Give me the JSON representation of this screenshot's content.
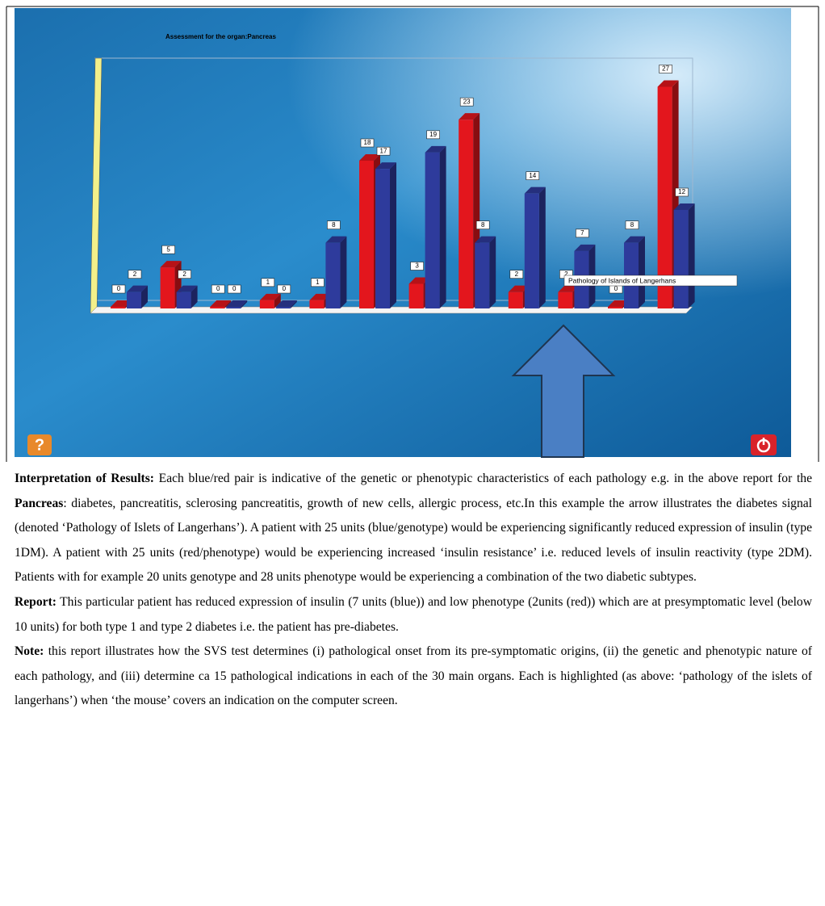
{
  "chart_data": {
    "type": "bar3d",
    "title": "Assessment for the organ:Pancreas",
    "categories": [
      null,
      null,
      null,
      null,
      null,
      null,
      null,
      null,
      null,
      null,
      null,
      null
    ],
    "series": [
      {
        "color": "#e3161d",
        "values": [
          0,
          5,
          0,
          1,
          1,
          18,
          3,
          23,
          2,
          2,
          0,
          27
        ]
      },
      {
        "color": "#2e3b9c",
        "values": [
          2,
          2,
          0,
          0,
          8,
          17,
          19,
          8,
          14,
          7,
          8,
          12
        ]
      }
    ],
    "ylim": [
      0,
      30
    ],
    "tooltip": "Pathology of Islands of Langerhans"
  },
  "document": {
    "paragraphs": [
      {
        "label": "Interpretation of Results:",
        "text": "Each blue/red pair is indicative of the genetic or phenotypic characteristics of each pathology e.g. in the above report for the",
        "bold": "Pancreas",
        "text_after": ": diabetes, pancreatitis, sclerosing pancreatitis, growth of new cells, allergic process, etc.In this example the arrow illustrates the diabetes signal (denoted ‘Pathology of Islets of Langerhans’). A patient with 25 units (blue/genotype) would be experiencing significantly reduced expression of insulin (type 1DM). A patient with 25 units (red/phenotype) would be experiencing increased ‘insulin resistance’ i.e. reduced levels of insulin reactivity (type 2DM). Patients with for example 20 units genotype and 28 units phenotype would be experiencing a combination of the two diabetic subtypes."
      },
      {
        "label": "Report:",
        "text": "This particular patient has reduced expression of insulin (7 units (blue)) and low phenotype (2units (red)) which are at presymptomatic level (below 10 units) for both type 1 and type 2 diabetes i.e. the patient has pre-diabetes."
      },
      {
        "label": "Note:",
        "text": "this report illustrates how the SVS test determines (i) pathological onset from its pre-symptomatic origins, (ii) the genetic and phenotypic nature of each pathology, and (iii) determine ca 15 pathological indications in each of the 30 main organs.  Each is highlighted (as above: ‘pathology of the islets of langerhans’) when ‘the mouse’ covers an indication on the computer screen."
      }
    ]
  }
}
